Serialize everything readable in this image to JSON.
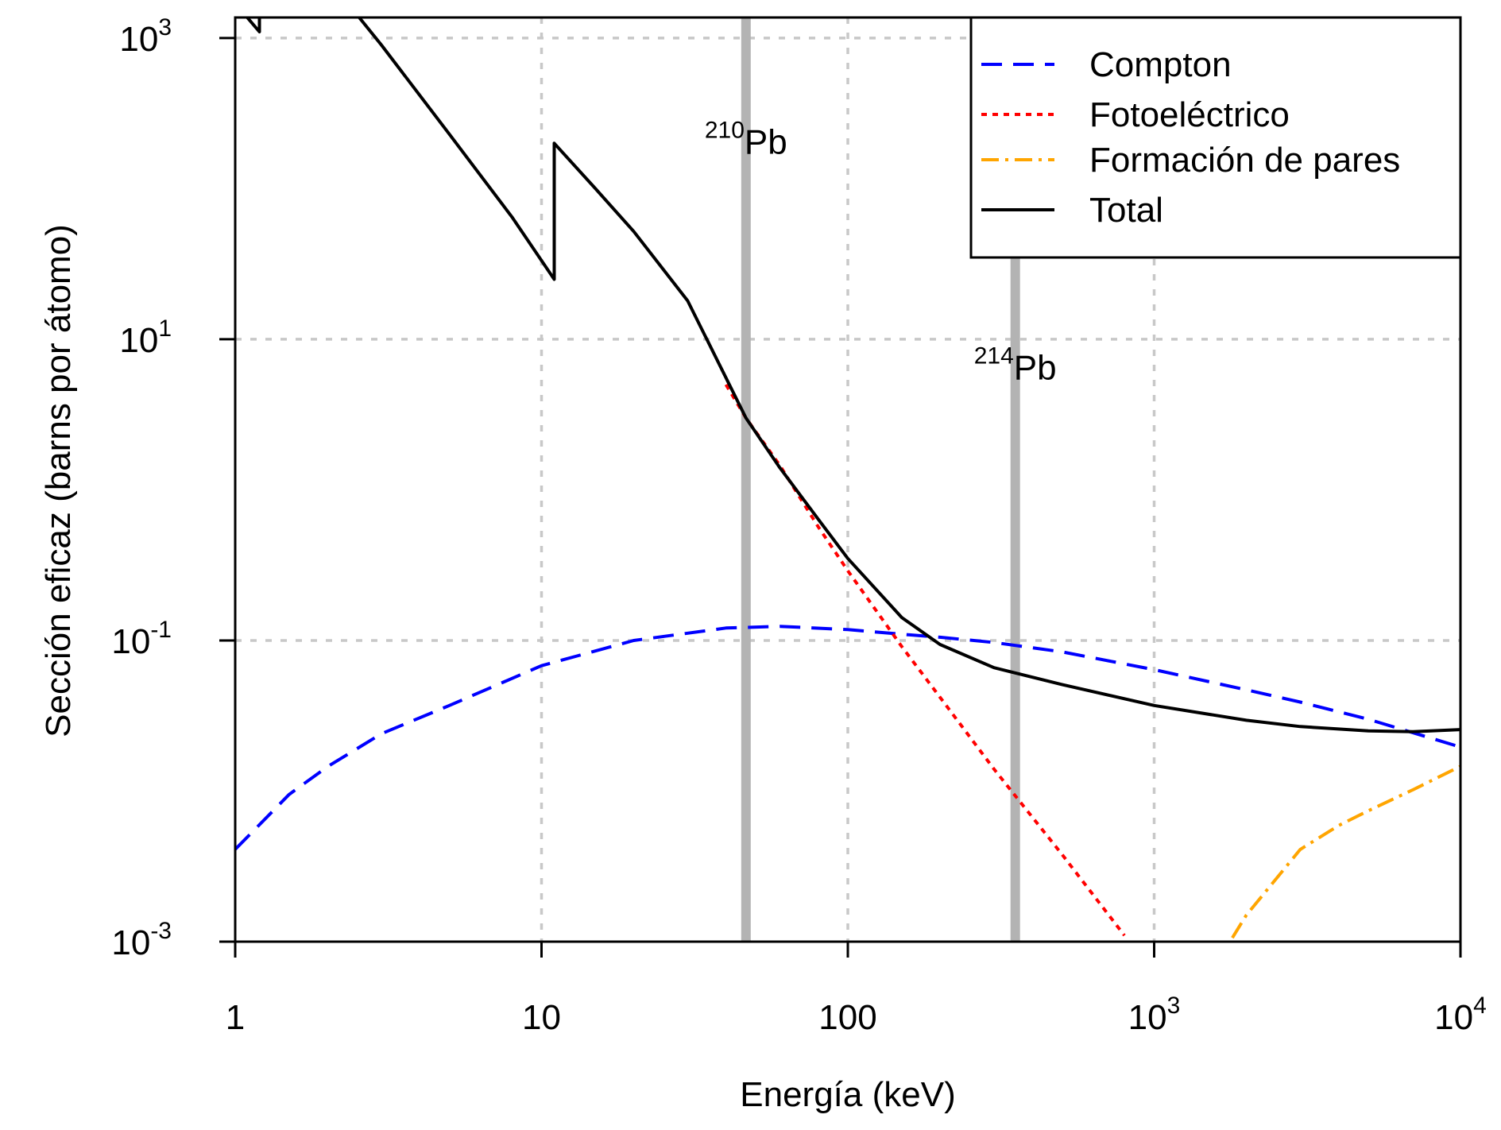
{
  "chart_data": {
    "type": "line",
    "xlabel": "Energía (keV)",
    "ylabel": "Sección eficaz (barns por átomo)",
    "x_scale": "log",
    "y_scale": "log",
    "xlim": [
      1,
      10000
    ],
    "ylim": [
      0.001,
      10000
    ],
    "grid": true,
    "x_ticks": [
      {
        "value": 1,
        "base": "1",
        "exp": ""
      },
      {
        "value": 10,
        "base": "10",
        "exp": ""
      },
      {
        "value": 100,
        "base": "100",
        "exp": ""
      },
      {
        "value": 1000,
        "base": "10",
        "exp": "3"
      },
      {
        "value": 10000,
        "base": "10",
        "exp": "4"
      }
    ],
    "y_ticks": [
      {
        "value": 0.001,
        "base": "10",
        "exp": "-3"
      },
      {
        "value": 0.1,
        "base": "10",
        "exp": "-1"
      },
      {
        "value": 10,
        "base": "10",
        "exp": "1"
      },
      {
        "value": 1000,
        "base": "10",
        "exp": "3"
      }
    ],
    "legend": {
      "position": "top-right",
      "entries": [
        {
          "label": "Compton",
          "series": "compton"
        },
        {
          "label": "Fotoeléctrico",
          "series": "photo"
        },
        {
          "label": "Formación de pares",
          "series": "pair"
        },
        {
          "label": "Total",
          "series": "total"
        }
      ]
    },
    "reference_lines": [
      {
        "x": 46.5,
        "label_sup": "210",
        "label_main": "Pb",
        "label_y": 170,
        "color": "#b3b3b3"
      },
      {
        "x": 352,
        "label_sup": "214",
        "label_main": "Pb",
        "label_y": 5.4,
        "color": "#b3b3b3"
      }
    ],
    "series": [
      {
        "key": "compton",
        "name": "Compton",
        "color": "#0000ff",
        "dash": "26,14",
        "x": [
          1,
          1.5,
          2,
          3,
          5,
          10,
          20,
          40,
          60,
          100,
          150,
          200,
          300,
          500,
          1000,
          2000,
          3000,
          5000,
          10000
        ],
        "y": [
          0.0041,
          0.0095,
          0.0145,
          0.024,
          0.037,
          0.068,
          0.1,
          0.121,
          0.124,
          0.118,
          0.11,
          0.105,
          0.097,
          0.084,
          0.064,
          0.047,
          0.039,
          0.03,
          0.0196
        ]
      },
      {
        "key": "photo",
        "name": "Fotoeléctrico",
        "color": "#ff0000",
        "dash": "7,7",
        "x": [
          40,
          46.5,
          60,
          80,
          100,
          150,
          200,
          300,
          500,
          800
        ],
        "y": [
          5.0,
          3.0,
          1.45,
          0.57,
          0.29,
          0.091,
          0.042,
          0.014,
          0.0038,
          0.0011
        ]
      },
      {
        "key": "pair",
        "name": "Formación de pares",
        "color": "#ffa500",
        "dash": "22,8,4,8",
        "x": [
          1800,
          2000,
          3000,
          4000,
          5000,
          7000,
          10000
        ],
        "y": [
          0.00106,
          0.0015,
          0.0041,
          0.0059,
          0.0074,
          0.0102,
          0.0146
        ]
      },
      {
        "key": "total",
        "name": "Total",
        "color": "#000000",
        "dash": "",
        "x": [
          1,
          1.2,
          1.2,
          1.22,
          1.22,
          1.24,
          1.24,
          1.3,
          1.4,
          1.4,
          1.5,
          2,
          3,
          5,
          8,
          11.0,
          11.0,
          15,
          20,
          30,
          46.5,
          60,
          80,
          100,
          150,
          200,
          300,
          500,
          1000,
          2000,
          3000,
          5000,
          7000,
          10000
        ],
        "y": [
          1700,
          1100,
          3300,
          3400,
          4100,
          4200,
          5600,
          5400,
          5100,
          5600,
          4700,
          2500,
          900,
          230,
          65,
          25,
          200,
          100,
          52,
          18,
          3.0,
          1.4,
          0.64,
          0.35,
          0.142,
          0.094,
          0.066,
          0.051,
          0.037,
          0.0295,
          0.0268,
          0.0251,
          0.0248,
          0.0256
        ]
      }
    ]
  }
}
